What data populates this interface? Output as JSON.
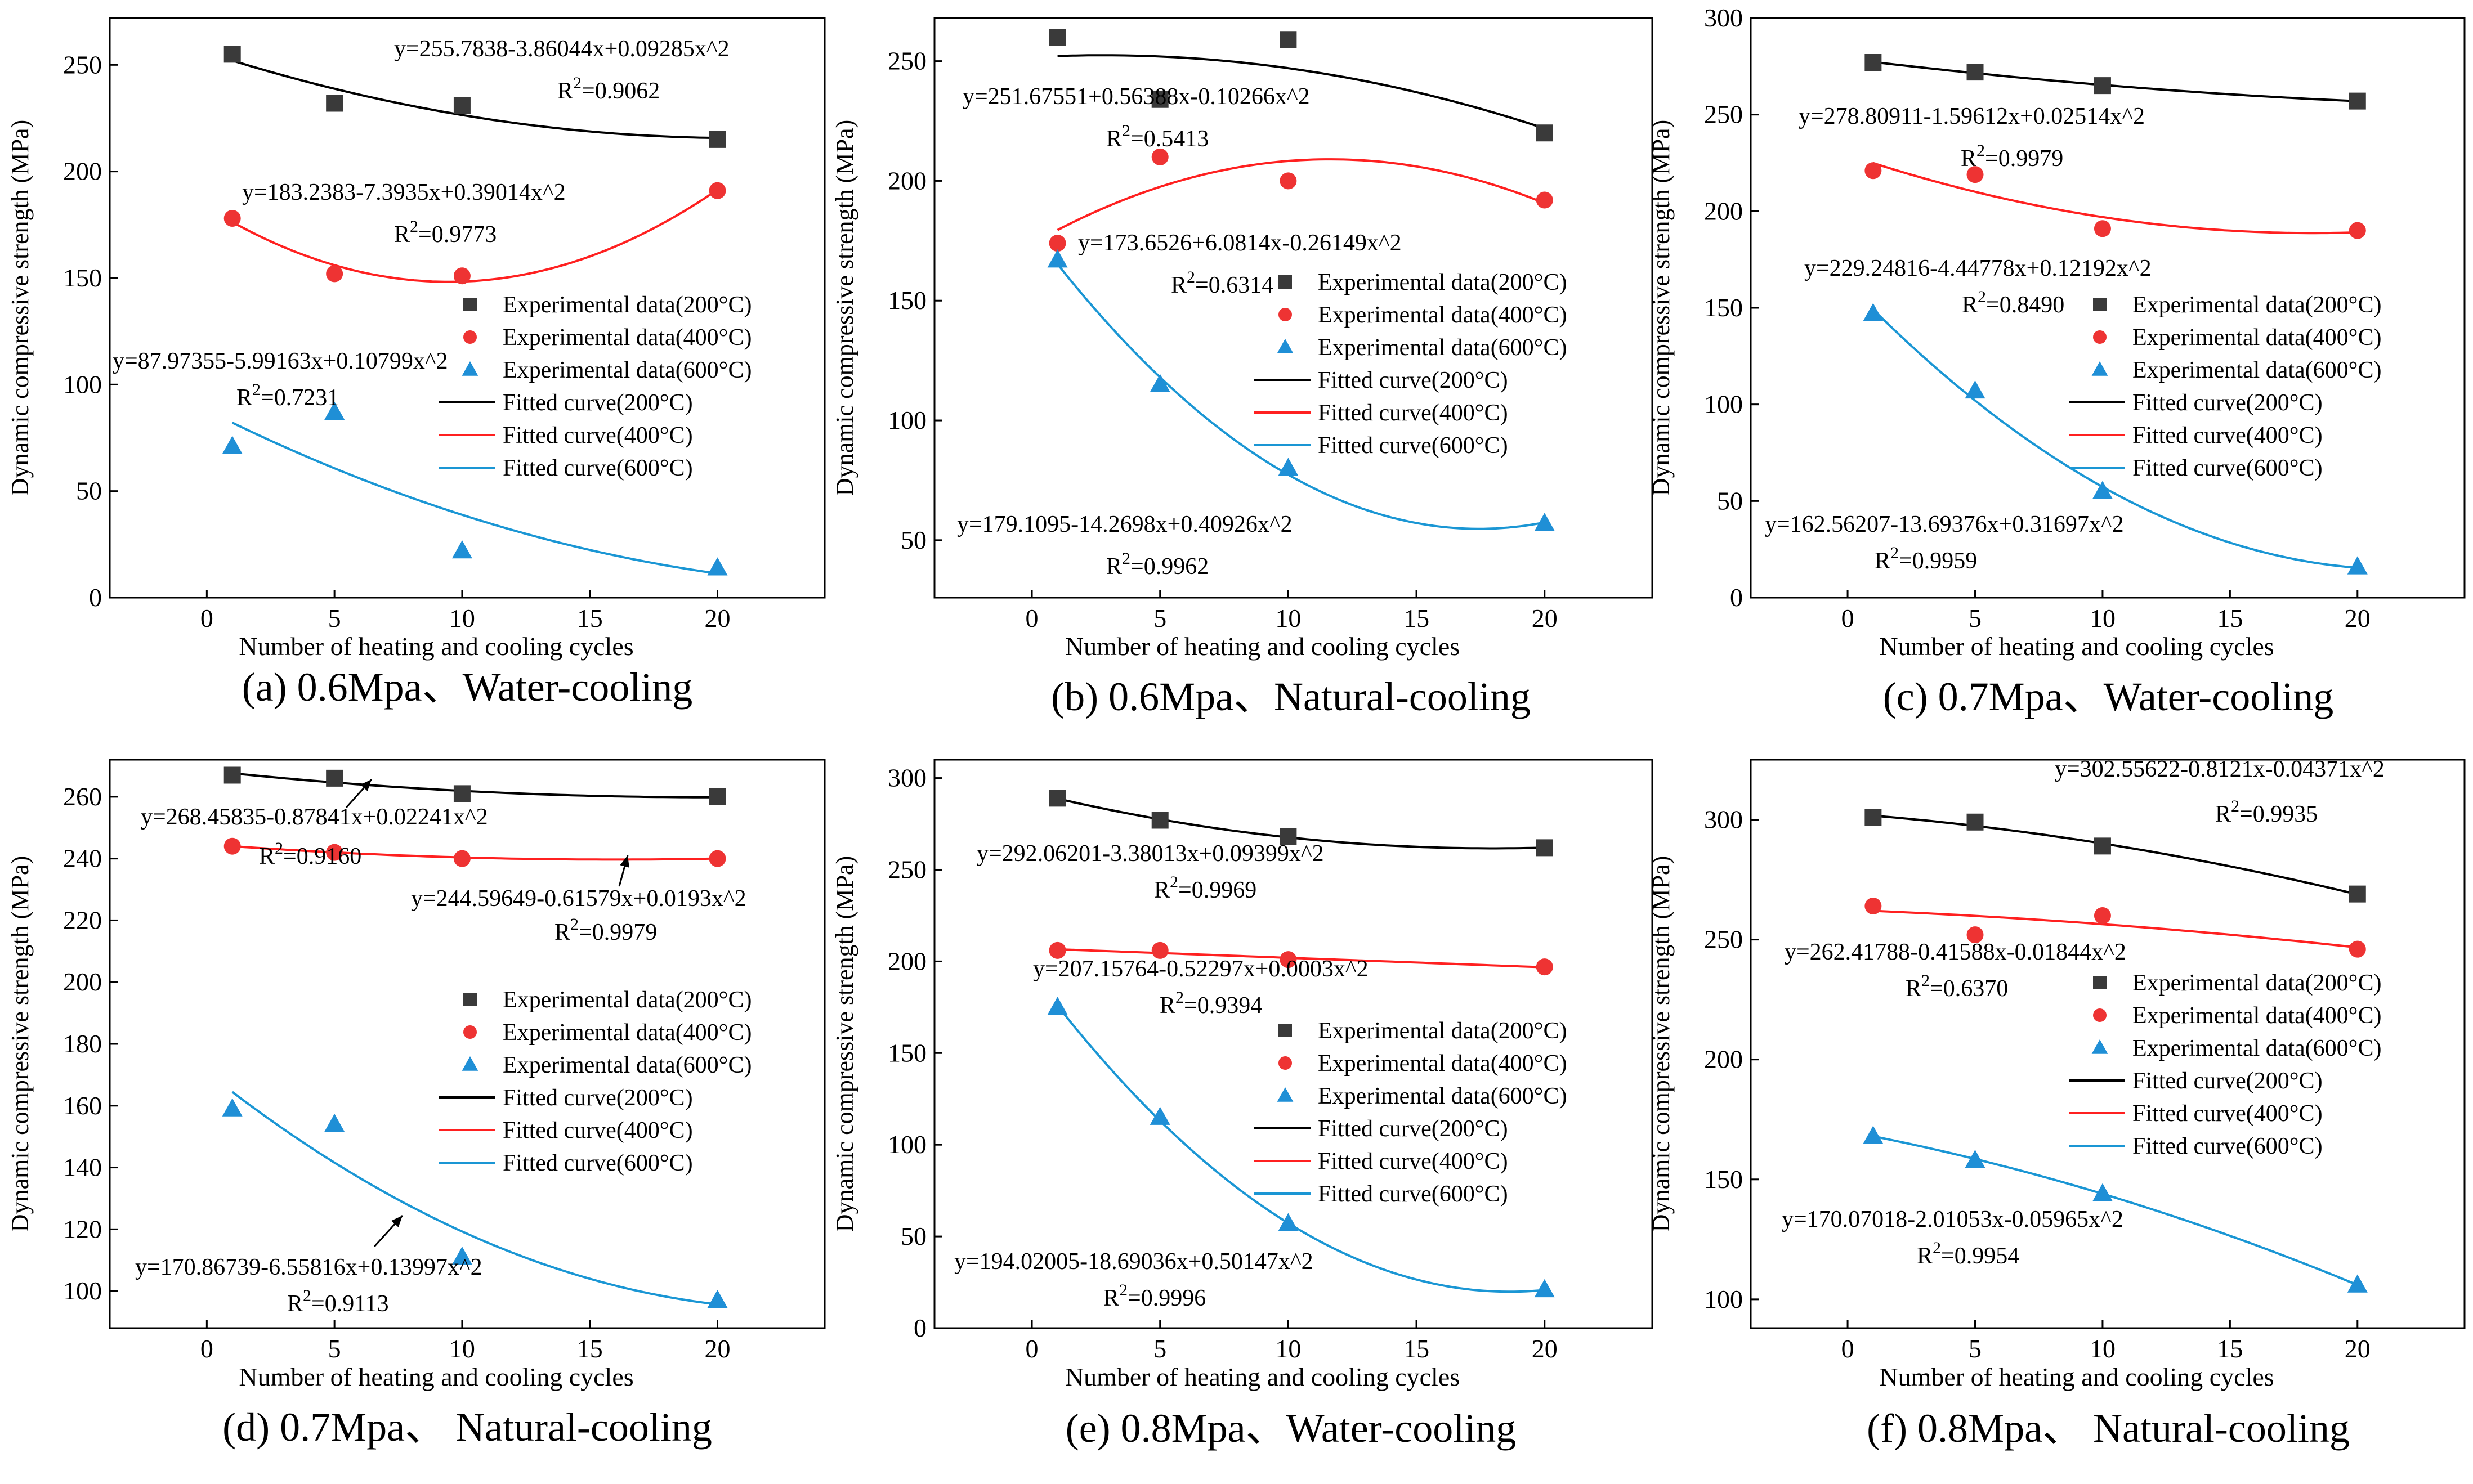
{
  "colors": {
    "200": "#3a3a3a",
    "400": "#ee3333",
    "600": "#1f8fd6",
    "line200": "#000000",
    "line400": "#ff2020",
    "line600": "#1a96d4"
  },
  "chart_data": [
    {
      "type": "scatter",
      "caption": "(a) 0.6Mpa、Water-cooling",
      "xlabel": "Number of heating and cooling cycles",
      "ylabel": "Dynamic compressive strength (MPa)",
      "x_ticks": [
        0,
        5,
        10,
        15,
        20
      ],
      "y_ticks": [
        0,
        50,
        100,
        150,
        200,
        250
      ],
      "series": [
        {
          "name": "Experimental data(200°C)",
          "x": [
            1,
            5,
            10,
            20
          ],
          "y": [
            255,
            232,
            231,
            215
          ]
        },
        {
          "name": "Experimental data(400°C)",
          "x": [
            1,
            5,
            10,
            20
          ],
          "y": [
            178,
            152,
            151,
            191
          ]
        },
        {
          "name": "Experimental data(600°C)",
          "x": [
            1,
            5,
            10,
            20
          ],
          "y": [
            71,
            87,
            22,
            14
          ]
        }
      ],
      "fitted": [
        {
          "name": "Fitted curve(200°C)",
          "coef": [
            255.7838,
            -3.86044,
            0.09285
          ]
        },
        {
          "name": "Fitted curve(400°C)",
          "coef": [
            183.2383,
            -7.3935,
            0.39014
          ]
        },
        {
          "name": "Fitted curve(600°C)",
          "coef": [
            87.97355,
            -5.99163,
            0.10799
          ]
        }
      ],
      "annotations": [
        {
          "eq": "y=255.7838-3.86044x+0.09285x^2",
          "r2": "0.9062"
        },
        {
          "eq": "y=183.2383-7.3935x+0.39014x^2",
          "r2": "0.9773"
        },
        {
          "eq": "y=87.97355-5.99163x+0.10799x^2",
          "r2": "0.7231"
        }
      ]
    },
    {
      "type": "scatter",
      "caption": "(b) 0.6Mpa、Natural-cooling",
      "xlabel": "Number of heating and cooling cycles",
      "ylabel": "Dynamic compressive strength (MPa)",
      "x_ticks": [
        0,
        5,
        10,
        15,
        20
      ],
      "y_ticks": [
        50,
        100,
        150,
        200,
        250
      ],
      "series": [
        {
          "name": "Experimental data(200°C)",
          "x": [
            1,
            5,
            10,
            20
          ],
          "y": [
            260,
            234,
            259,
            220
          ]
        },
        {
          "name": "Experimental data(400°C)",
          "x": [
            1,
            5,
            10,
            20
          ],
          "y": [
            174,
            210,
            200,
            192
          ]
        },
        {
          "name": "Experimental data(600°C)",
          "x": [
            1,
            5,
            10,
            20
          ],
          "y": [
            167,
            115,
            80,
            57
          ]
        }
      ],
      "fitted": [
        {
          "name": "Fitted curve(200°C)",
          "coef": [
            251.67551,
            0.56388,
            -0.10266
          ]
        },
        {
          "name": "Fitted curve(400°C)",
          "coef": [
            173.6526,
            6.0814,
            -0.26149
          ]
        },
        {
          "name": "Fitted curve(600°C)",
          "coef": [
            179.1095,
            -14.2698,
            0.40926
          ]
        }
      ],
      "annotations": [
        {
          "eq": "y=251.67551+0.56388x-0.10266x^2",
          "r2": "0.5413"
        },
        {
          "eq": "y=173.6526+6.0814x-0.26149x^2",
          "r2": "0.6314"
        },
        {
          "eq": "y=179.1095-14.2698x+0.40926x^2",
          "r2": "0.9962"
        }
      ]
    },
    {
      "type": "scatter",
      "caption": "(c) 0.7Mpa、Water-cooling",
      "xlabel": "Number of heating and cooling cycles",
      "ylabel": "Dynamic compressive strength (MPa)",
      "x_ticks": [
        0,
        5,
        10,
        15,
        20
      ],
      "y_ticks": [
        0,
        50,
        100,
        150,
        200,
        250,
        300
      ],
      "series": [
        {
          "name": "Experimental data(200°C)",
          "x": [
            1,
            5,
            10,
            20
          ],
          "y": [
            277,
            272,
            265,
            257
          ]
        },
        {
          "name": "Experimental data(400°C)",
          "x": [
            1,
            5,
            10,
            20
          ],
          "y": [
            221,
            219,
            191,
            190
          ]
        },
        {
          "name": "Experimental data(600°C)",
          "x": [
            1,
            5,
            10,
            20
          ],
          "y": [
            147,
            107,
            55,
            16
          ]
        }
      ],
      "fitted": [
        {
          "name": "Fitted curve(200°C)",
          "coef": [
            278.80911,
            -1.59612,
            0.02514
          ]
        },
        {
          "name": "Fitted curve(400°C)",
          "coef": [
            229.24816,
            -4.44778,
            0.12192
          ]
        },
        {
          "name": "Fitted curve(600°C)",
          "coef": [
            162.56207,
            -13.69376,
            0.31697
          ]
        }
      ],
      "annotations": [
        {
          "eq": "y=278.80911-1.59612x+0.02514x^2",
          "r2": "0.9979"
        },
        {
          "eq": "y=229.24816-4.44778x+0.12192x^2",
          "r2": "0.8490"
        },
        {
          "eq": "y=162.56207-13.69376x+0.31697x^2",
          "r2": "0.9959"
        }
      ]
    },
    {
      "type": "scatter",
      "caption": "(d) 0.7Mpa、 Natural-cooling",
      "xlabel": "Number of heating and cooling cycles",
      "ylabel": "Dynamic compressive strength (MPa)",
      "x_ticks": [
        0,
        5,
        10,
        15,
        20
      ],
      "y_ticks": [
        100,
        120,
        140,
        160,
        180,
        200,
        220,
        240,
        260
      ],
      "series": [
        {
          "name": "Experimental data(200°C)",
          "x": [
            1,
            5,
            10,
            20
          ],
          "y": [
            267,
            266,
            261,
            260
          ]
        },
        {
          "name": "Experimental data(400°C)",
          "x": [
            1,
            5,
            10,
            20
          ],
          "y": [
            244,
            242,
            240,
            240
          ]
        },
        {
          "name": "Experimental data(600°C)",
          "x": [
            1,
            5,
            10,
            20
          ],
          "y": [
            159,
            154,
            111,
            97
          ]
        }
      ],
      "fitted": [
        {
          "name": "Fitted curve(200°C)",
          "coef": [
            268.45835,
            -0.87841,
            0.02241
          ]
        },
        {
          "name": "Fitted curve(400°C)",
          "coef": [
            244.59649,
            -0.61579,
            0.0193
          ]
        },
        {
          "name": "Fitted curve(600°C)",
          "coef": [
            170.86739,
            -6.55816,
            0.13997
          ]
        }
      ],
      "annotations": [
        {
          "eq": "y=268.45835-0.87841x+0.02241x^2",
          "r2": "0.9160"
        },
        {
          "eq": "y=244.59649-0.61579x+0.0193x^2",
          "r2": "0.9979"
        },
        {
          "eq": "y=170.86739-6.55816x+0.13997x^2",
          "r2": "0.9113"
        }
      ]
    },
    {
      "type": "scatter",
      "caption": "(e) 0.8Mpa、Water-cooling",
      "xlabel": "Number of heating and cooling cycles",
      "ylabel": "Dynamic compressive strength (MPa)",
      "x_ticks": [
        0,
        5,
        10,
        15,
        20
      ],
      "y_ticks": [
        0,
        50,
        100,
        150,
        200,
        250,
        300
      ],
      "series": [
        {
          "name": "Experimental data(200°C)",
          "x": [
            1,
            5,
            10,
            20
          ],
          "y": [
            289,
            277,
            268,
            262
          ]
        },
        {
          "name": "Experimental data(400°C)",
          "x": [
            1,
            5,
            10,
            20
          ],
          "y": [
            206,
            206,
            201,
            197
          ]
        },
        {
          "name": "Experimental data(600°C)",
          "x": [
            1,
            5,
            10,
            20
          ],
          "y": [
            175,
            115,
            57,
            21
          ]
        }
      ],
      "fitted": [
        {
          "name": "Fitted curve(200°C)",
          "coef": [
            292.06201,
            -3.38013,
            0.09399
          ]
        },
        {
          "name": "Fitted curve(400°C)",
          "coef": [
            207.15764,
            -0.52297,
            0.0003
          ]
        },
        {
          "name": "Fitted curve(600°C)",
          "coef": [
            194.02005,
            -18.69036,
            0.50147
          ]
        }
      ],
      "annotations": [
        {
          "eq": "y=292.06201-3.38013x+0.09399x^2",
          "r2": "0.9969"
        },
        {
          "eq": "y=207.15764-0.52297x+0.0003x^2",
          "r2": "0.9394"
        },
        {
          "eq": "y=194.02005-18.69036x+0.50147x^2",
          "r2": "0.9996"
        }
      ]
    },
    {
      "type": "scatter",
      "caption": "(f) 0.8Mpa、 Natural-cooling",
      "xlabel": "Number of heating and cooling cycles",
      "ylabel": "Dynamic compressive strength (MPa)",
      "x_ticks": [
        0,
        5,
        10,
        15,
        20
      ],
      "y_ticks": [
        100,
        150,
        200,
        250,
        300
      ],
      "series": [
        {
          "name": "Experimental data(200°C)",
          "x": [
            1,
            5,
            10,
            20
          ],
          "y": [
            301,
            299,
            289,
            269
          ]
        },
        {
          "name": "Experimental data(400°C)",
          "x": [
            1,
            5,
            10,
            20
          ],
          "y": [
            264,
            252,
            260,
            246
          ]
        },
        {
          "name": "Experimental data(600°C)",
          "x": [
            1,
            5,
            10,
            20
          ],
          "y": [
            168,
            158,
            144,
            106
          ]
        }
      ],
      "fitted": [
        {
          "name": "Fitted curve(200°C)",
          "coef": [
            302.55622,
            -0.8121,
            -0.04371
          ]
        },
        {
          "name": "Fitted curve(400°C)",
          "coef": [
            262.41788,
            -0.41588,
            -0.01844
          ]
        },
        {
          "name": "Fitted curve(600°C)",
          "coef": [
            170.07018,
            -2.01053,
            -0.05965
          ]
        }
      ],
      "annotations": [
        {
          "eq": "y=302.55622-0.8121x-0.04371x^2",
          "r2": "0.9935"
        },
        {
          "eq": "y=262.41788-0.41588x-0.01844x^2",
          "r2": "0.6370"
        },
        {
          "eq": "y=170.07018-2.01053x-0.05965x^2",
          "r2": "0.9954"
        }
      ]
    }
  ]
}
